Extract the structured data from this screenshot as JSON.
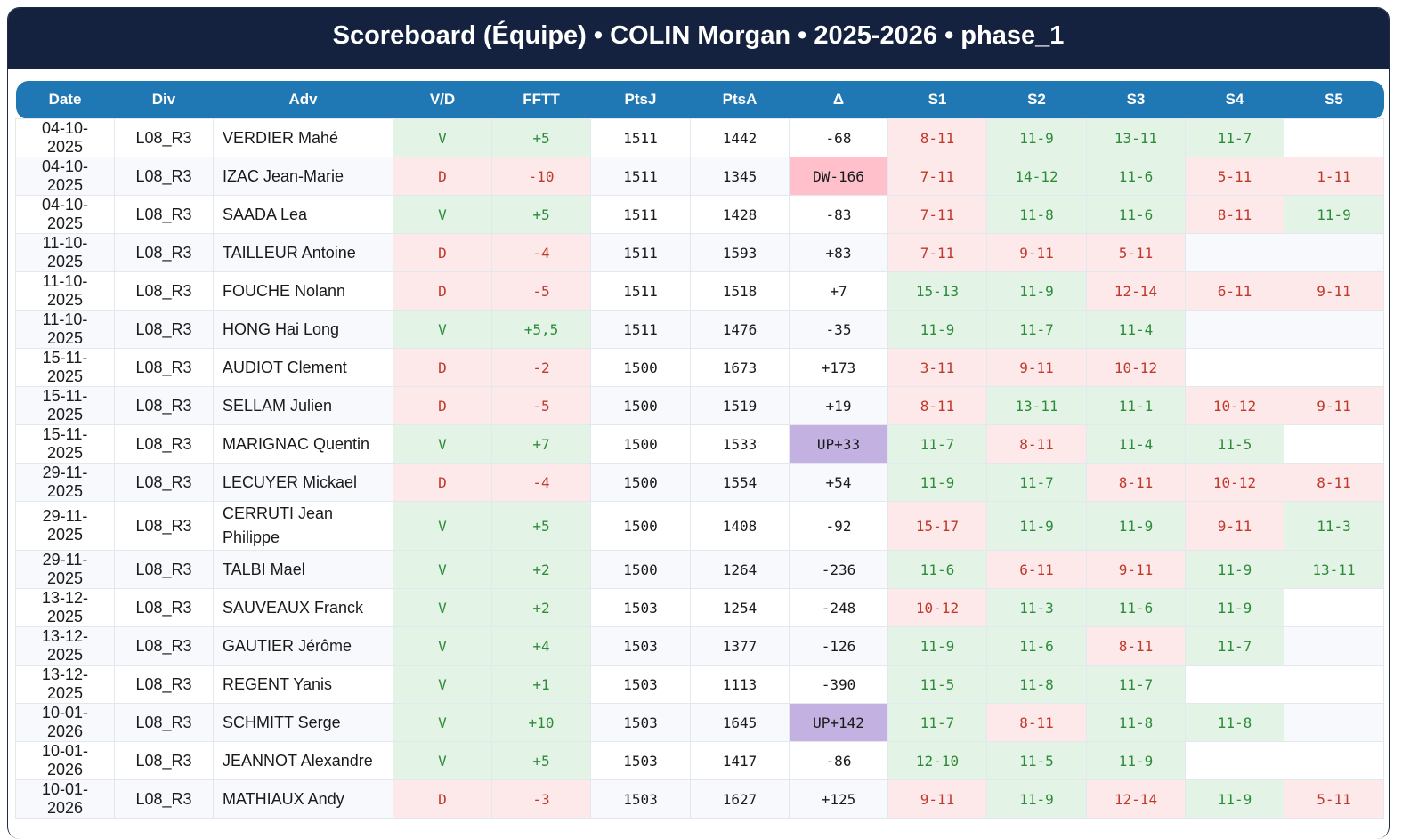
{
  "header": {
    "title": "Scoreboard (Équipe) • COLIN Morgan • 2025-2026 • phase_1"
  },
  "table": {
    "columns": [
      "Date",
      "Div",
      "Adv",
      "V/D",
      "FFTT",
      "PtsJ",
      "PtsA",
      "Δ",
      "S1",
      "S2",
      "S3",
      "S4",
      "S5"
    ],
    "rows": [
      [
        "04-10-2025",
        "L08_R3",
        "VERDIER Mahé",
        "V",
        "+5",
        "1511",
        "1442",
        "-68",
        "8-11",
        "11-9",
        "13-11",
        "11-7",
        null
      ],
      [
        "04-10-2025",
        "L08_R3",
        "IZAC Jean-Marie",
        "D",
        "-10",
        "1511",
        "1345",
        "DW-166",
        "7-11",
        "14-12",
        "11-6",
        "5-11",
        "1-11"
      ],
      [
        "04-10-2025",
        "L08_R3",
        "SAADA Lea",
        "V",
        "+5",
        "1511",
        "1428",
        "-83",
        "7-11",
        "11-8",
        "11-6",
        "8-11",
        "11-9"
      ],
      [
        "11-10-2025",
        "L08_R3",
        "TAILLEUR Antoine",
        "D",
        "-4",
        "1511",
        "1593",
        "+83",
        "7-11",
        "9-11",
        "5-11",
        null,
        null
      ],
      [
        "11-10-2025",
        "L08_R3",
        "FOUCHE Nolann",
        "D",
        "-5",
        "1511",
        "1518",
        "+7",
        "15-13",
        "11-9",
        "12-14",
        "6-11",
        "9-11"
      ],
      [
        "11-10-2025",
        "L08_R3",
        "HONG Hai Long",
        "V",
        "+5,5",
        "1511",
        "1476",
        "-35",
        "11-9",
        "11-7",
        "11-4",
        null,
        null
      ],
      [
        "15-11-2025",
        "L08_R3",
        "AUDIOT Clement",
        "D",
        "-2",
        "1500",
        "1673",
        "+173",
        "3-11",
        "9-11",
        "10-12",
        null,
        null
      ],
      [
        "15-11-2025",
        "L08_R3",
        "SELLAM Julien",
        "D",
        "-5",
        "1500",
        "1519",
        "+19",
        "8-11",
        "13-11",
        "11-1",
        "10-12",
        "9-11"
      ],
      [
        "15-11-2025",
        "L08_R3",
        "MARIGNAC Quentin",
        "V",
        "+7",
        "1500",
        "1533",
        "UP+33",
        "11-7",
        "8-11",
        "11-4",
        "11-5",
        null
      ],
      [
        "29-11-2025",
        "L08_R3",
        "LECUYER Mickael",
        "D",
        "-4",
        "1500",
        "1554",
        "+54",
        "11-9",
        "11-7",
        "8-11",
        "10-12",
        "8-11"
      ],
      [
        "29-11-2025",
        "L08_R3",
        "CERRUTI Jean Philippe",
        "V",
        "+5",
        "1500",
        "1408",
        "-92",
        "15-17",
        "11-9",
        "11-9",
        "9-11",
        "11-3"
      ],
      [
        "29-11-2025",
        "L08_R3",
        "TALBI Mael",
        "V",
        "+2",
        "1500",
        "1264",
        "-236",
        "11-6",
        "6-11",
        "9-11",
        "11-9",
        "13-11"
      ],
      [
        "13-12-2025",
        "L08_R3",
        "SAUVEAUX Franck",
        "V",
        "+2",
        "1503",
        "1254",
        "-248",
        "10-12",
        "11-3",
        "11-6",
        "11-9",
        null
      ],
      [
        "13-12-2025",
        "L08_R3",
        "GAUTIER Jérôme",
        "V",
        "+4",
        "1503",
        "1377",
        "-126",
        "11-9",
        "11-6",
        "8-11",
        "11-7",
        null
      ],
      [
        "13-12-2025",
        "L08_R3",
        "REGENT Yanis",
        "V",
        "+1",
        "1503",
        "1113",
        "-390",
        "11-5",
        "11-8",
        "11-7",
        null,
        null
      ],
      [
        "10-01-2026",
        "L08_R3",
        "SCHMITT Serge",
        "V",
        "+10",
        "1503",
        "1645",
        "UP+142",
        "11-7",
        "8-11",
        "11-8",
        "11-8",
        null
      ],
      [
        "10-01-2026",
        "L08_R3",
        "JEANNOT Alexandre",
        "V",
        "+5",
        "1503",
        "1417",
        "-86",
        "12-10",
        "11-5",
        "11-9",
        null,
        null
      ],
      [
        "10-01-2026",
        "L08_R3",
        "MATHIAUX Andy",
        "D",
        "-3",
        "1503",
        "1627",
        "+125",
        "9-11",
        "11-9",
        "12-14",
        "11-9",
        "5-11"
      ]
    ]
  }
}
